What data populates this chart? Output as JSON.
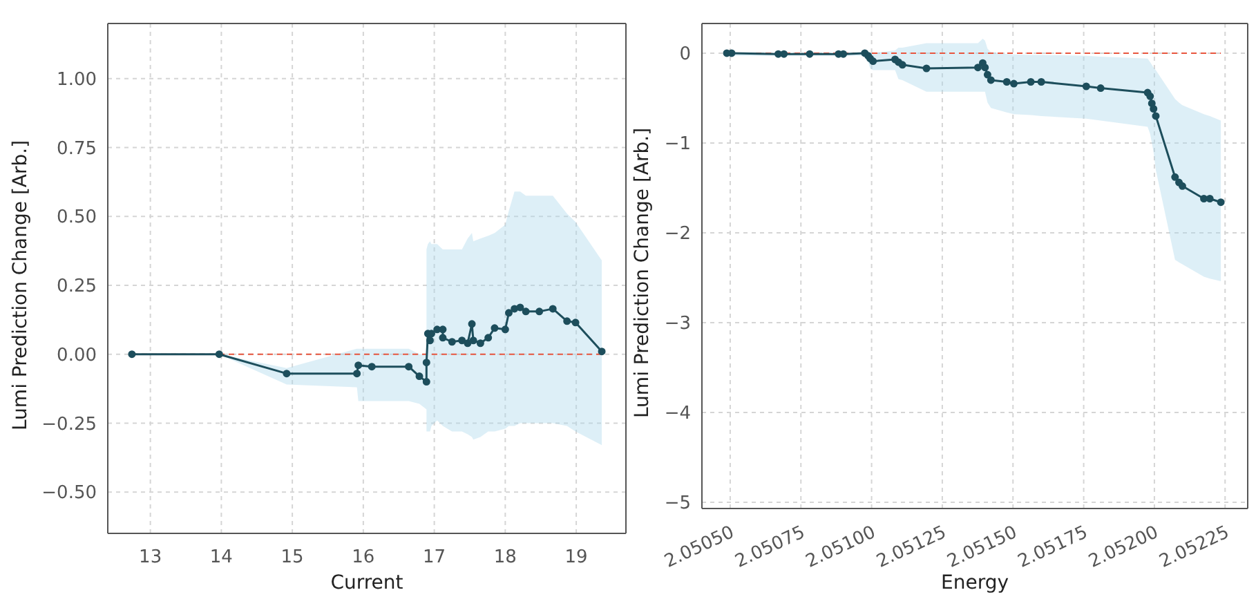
{
  "chart_data": [
    {
      "type": "line",
      "xlabel": "Current",
      "ylabel": "Lumi Prediction Change [Arb.]",
      "xlim": [
        12.4,
        19.7
      ],
      "ylim": [
        -0.65,
        1.2
      ],
      "xticks": [
        13,
        14,
        15,
        16,
        17,
        18,
        19
      ],
      "yticks": [
        {
          "value": -0.5,
          "label": "−0.50"
        },
        {
          "value": -0.25,
          "label": "−0.25"
        },
        {
          "value": 0,
          "label": "0.00"
        },
        {
          "value": 0.25,
          "label": "0.25"
        },
        {
          "value": 0.5,
          "label": "0.50"
        },
        {
          "value": 0.75,
          "label": "0.75"
        },
        {
          "value": 1,
          "label": "1.00"
        }
      ],
      "grid": true,
      "marker": "circle",
      "line_style": "solid",
      "ref_lines": [
        {
          "axis": "y",
          "value": 0,
          "label": null,
          "color": "#e8553e",
          "line_style": "dashed"
        }
      ],
      "series": [
        {
          "color": "#1d4e5c",
          "x": [
            12.74,
            13.97,
            14.92,
            15.91,
            15.93,
            16.12,
            16.64,
            16.79,
            16.89,
            16.89,
            16.91,
            16.94,
            16.96,
            17.04,
            17.12,
            17.12,
            17.25,
            17.39,
            17.47,
            17.53,
            17.55,
            17.65,
            17.76,
            17.85,
            18.0,
            18.05,
            18.13,
            18.21,
            18.29,
            18.48,
            18.67,
            18.87,
            18.99,
            19.36
          ],
          "values": [
            0,
            0,
            -0.07,
            -0.07,
            -0.04,
            -0.045,
            -0.045,
            -0.08,
            -0.1,
            -0.03,
            0.075,
            0.05,
            0.075,
            0.09,
            0.09,
            0.06,
            0.045,
            0.05,
            0.04,
            0.11,
            0.05,
            0.04,
            0.06,
            0.095,
            0.09,
            0.15,
            0.165,
            0.17,
            0.155,
            0.155,
            0.165,
            0.12,
            0.115,
            0.01
          ],
          "lower": [
            0,
            0,
            -0.11,
            -0.12,
            -0.17,
            -0.17,
            -0.17,
            -0.18,
            -0.2,
            -0.28,
            -0.28,
            -0.28,
            -0.26,
            -0.24,
            -0.26,
            -0.26,
            -0.28,
            -0.28,
            -0.29,
            -0.3,
            -0.31,
            -0.3,
            -0.28,
            -0.28,
            -0.27,
            -0.26,
            -0.26,
            -0.25,
            -0.25,
            -0.25,
            -0.25,
            -0.26,
            -0.28,
            -0.33
          ],
          "upper": [
            0,
            0,
            -0.05,
            0.02,
            0.02,
            0.02,
            0.02,
            0,
            0,
            0.38,
            0.4,
            0.41,
            0.4,
            0.4,
            0.38,
            0.38,
            0.38,
            0.38,
            0.42,
            0.44,
            0.41,
            0.42,
            0.43,
            0.44,
            0.47,
            0.52,
            0.59,
            0.59,
            0.575,
            0.575,
            0.575,
            0.51,
            0.48,
            0.34
          ]
        }
      ]
    },
    {
      "type": "line",
      "xlabel": "Energy",
      "ylabel": "Lumi Prediction Change [Arb.]",
      "xlim": [
        2.0504,
        2.05233
      ],
      "ylim": [
        -5.07,
        0.33
      ],
      "xticks": [
        {
          "value": 2.0505,
          "label": "2.05050"
        },
        {
          "value": 2.05075,
          "label": "2.05075"
        },
        {
          "value": 2.051,
          "label": "2.05100"
        },
        {
          "value": 2.05125,
          "label": "2.05125"
        },
        {
          "value": 2.0515,
          "label": "2.05150"
        },
        {
          "value": 2.05175,
          "label": "2.05175"
        },
        {
          "value": 2.052,
          "label": "2.05200"
        },
        {
          "value": 2.05225,
          "label": "2.05225"
        }
      ],
      "yticks": [
        {
          "value": -5,
          "label": "−5"
        },
        {
          "value": -4,
          "label": "−4"
        },
        {
          "value": -3,
          "label": "−3"
        },
        {
          "value": -2,
          "label": "−2"
        },
        {
          "value": -1,
          "label": "−1"
        },
        0
      ],
      "grid": true,
      "marker": "circle",
      "line_style": "solid",
      "ref_lines": [
        {
          "axis": "y",
          "value": 0,
          "label": null,
          "color": "#e8553e",
          "line_style": "dashed"
        }
      ],
      "series": [
        {
          "color": "#1d4e5c",
          "x": [
            2.050488,
            2.050505,
            2.05067,
            2.05069,
            2.050781,
            2.050883,
            2.0509,
            2.050976,
            2.050988,
            2.050995,
            2.051005,
            2.051083,
            2.051095,
            2.051109,
            2.051194,
            2.051376,
            2.051393,
            2.051401,
            2.05141,
            2.051422,
            2.051478,
            2.051503,
            2.051563,
            2.0516,
            2.051759,
            2.05181,
            2.051976,
            2.051985,
            2.051991,
            2.051997,
            2.052005,
            2.052073,
            2.052087,
            2.052099,
            2.052175,
            2.052196,
            2.052235
          ],
          "values": [
            0,
            0,
            -0.01,
            -0.01,
            -0.01,
            -0.01,
            -0.01,
            0,
            -0.03,
            -0.06,
            -0.09,
            -0.07,
            -0.1,
            -0.13,
            -0.17,
            -0.16,
            -0.11,
            -0.16,
            -0.24,
            -0.3,
            -0.32,
            -0.34,
            -0.32,
            -0.32,
            -0.37,
            -0.39,
            -0.44,
            -0.48,
            -0.56,
            -0.62,
            -0.7,
            -1.38,
            -1.44,
            -1.48,
            -1.62,
            -1.62,
            -1.66
          ],
          "lower": [
            -0.03,
            -0.03,
            -0.03,
            -0.03,
            -0.03,
            -0.03,
            -0.03,
            -0.03,
            -0.1,
            -0.17,
            -0.19,
            -0.19,
            -0.29,
            -0.3,
            -0.43,
            -0.43,
            -0.43,
            -0.43,
            -0.55,
            -0.61,
            -0.66,
            -0.68,
            -0.69,
            -0.7,
            -0.73,
            -0.75,
            -0.82,
            -0.9,
            -1.0,
            -1.1,
            -1.3,
            -2.3,
            -2.33,
            -2.35,
            -2.49,
            -2.51,
            -2.54
          ],
          "upper": [
            0,
            0,
            0,
            0,
            0,
            0,
            0,
            0,
            0,
            0,
            0,
            0.03,
            0.06,
            0.06,
            0.11,
            0.11,
            0.16,
            0.14,
            0.05,
            0.01,
            -0.01,
            -0.015,
            -0.02,
            -0.02,
            -0.03,
            -0.04,
            -0.06,
            -0.1,
            -0.13,
            -0.16,
            -0.19,
            -0.51,
            -0.55,
            -0.58,
            -0.68,
            -0.7,
            -0.75
          ]
        }
      ]
    }
  ]
}
